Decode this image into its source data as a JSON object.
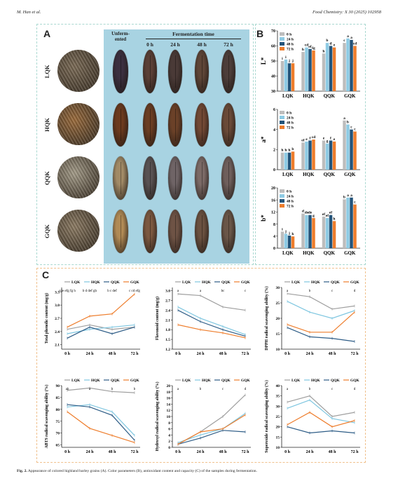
{
  "header": {
    "left": "M. Han et al.",
    "right": "Food Chemistry: X 30 (2025) 102958"
  },
  "panelA": {
    "label": "A",
    "varieties": [
      "LQK",
      "HQK",
      "QQK",
      "GQK"
    ],
    "column_unfermented": "Unferm-\nented",
    "fermentation_title": "Fermentation time",
    "time_cols": [
      "0 h",
      "24 h",
      "48 h",
      "72 h"
    ],
    "colors": {
      "LQK": {
        "whole": "#7a6a55",
        "grain": [
          "#3b2f3f",
          "#5a3f36",
          "#4a3a37",
          "#5e4537",
          "#4d3e3a"
        ]
      },
      "HQK": {
        "whole": "#9a6a3a",
        "grain": [
          "#6b3a1e",
          "#6a3d22",
          "#6b4128",
          "#714834",
          "#6a4a38"
        ]
      },
      "QQK": {
        "whole": "#a39b88",
        "grain": [
          "#a18a66",
          "#585152",
          "#6f6466",
          "#7b6a66",
          "#6f5f5c"
        ]
      },
      "GQK": {
        "whole": "#8b7a62",
        "grain": [
          "#b08a55",
          "#7b5840",
          "#6e5345",
          "#6a5140",
          "#6a5648"
        ]
      }
    }
  },
  "panelB": {
    "label": "B",
    "legend": [
      "0 h",
      "24 h",
      "48 h",
      "72 h"
    ],
    "series_colors": [
      "#bdbdbd",
      "#8ecbe4",
      "#23547a",
      "#ee7d2c"
    ],
    "categories": [
      "LQK",
      "HQK",
      "QQK",
      "GQK"
    ],
    "charts": [
      {
        "ylabel": "L*",
        "ylim": [
          30,
          70
        ],
        "ticks": [
          "30",
          "40",
          "50",
          "60",
          "70"
        ],
        "values": [
          [
            50,
            51,
            48.5,
            48.5
          ],
          [
            56,
            59,
            58,
            57
          ],
          [
            55,
            62,
            60,
            59
          ],
          [
            62,
            65,
            64,
            60
          ]
        ],
        "letters": [
          [
            "i",
            "i",
            "j",
            "j"
          ],
          [
            "h",
            "cd",
            "ef",
            "fg"
          ],
          [
            "h",
            "b",
            "d",
            "e"
          ],
          [
            "c",
            "a",
            "a",
            "cd"
          ]
        ]
      },
      {
        "ylabel": "a*",
        "ylim": [
          0,
          6
        ],
        "ticks": [
          "0",
          "2",
          "4",
          "6"
        ],
        "values": [
          [
            1.7,
            1.7,
            1.7,
            1.8
          ],
          [
            2.7,
            2.8,
            2.9,
            3.0
          ],
          [
            2.9,
            2.6,
            2.9,
            2.8
          ],
          [
            4.9,
            4.5,
            4.0,
            3.8
          ]
        ],
        "letters": [
          [
            "h",
            "h",
            "h",
            "b"
          ],
          [
            "ef",
            "e",
            "f",
            "cd"
          ],
          [
            "e",
            "g",
            "f",
            "e"
          ],
          [
            "a",
            "b",
            "c",
            "c"
          ]
        ]
      },
      {
        "ylabel": "b*",
        "ylim": [
          0,
          20
        ],
        "ticks": [
          "0",
          "4",
          "8",
          "12",
          "16",
          "20"
        ],
        "values": [
          [
            5.5,
            4.8,
            4.2,
            3.9
          ],
          [
            11.5,
            11.0,
            11.0,
            10.0
          ],
          [
            10.5,
            10.0,
            11.0,
            9.0
          ],
          [
            16.2,
            16.8,
            16.8,
            14.5
          ]
        ],
        "letters": [
          [
            "i",
            "j",
            "j",
            "k"
          ],
          [
            "d",
            "de",
            "de",
            "g"
          ],
          [
            "ef",
            "ef",
            "ef",
            "h"
          ],
          [
            "b",
            "a",
            "a",
            "c"
          ]
        ]
      }
    ]
  },
  "panelC": {
    "label": "C",
    "legend": [
      "LQK",
      "HQK",
      "QQK",
      "GQK"
    ],
    "series_colors": [
      "#9e9e9e",
      "#7ec6e0",
      "#2d5c86",
      "#ee7d2c"
    ],
    "x": [
      "0 h",
      "24 h",
      "48 h",
      "72 h"
    ],
    "charts": [
      {
        "ylabel": "Total phenolic content (mg/g)",
        "ylim": [
          2.0,
          3.4
        ],
        "ticks": [
          "2.1",
          "2.4",
          "2.7",
          "3.0",
          "3.3"
        ],
        "series": [
          [
            2.45,
            2.55,
            2.45,
            2.5
          ],
          [
            2.35,
            2.45,
            2.5,
            2.55
          ],
          [
            2.25,
            2.5,
            2.35,
            2.5
          ],
          [
            2.5,
            2.75,
            2.8,
            3.25
          ]
        ],
        "letters": [
          "cde efg fg h",
          "b d def gh",
          "b c def",
          "c cd efg"
        ]
      },
      {
        "ylabel": "Flavonoid content (mg/g)",
        "ylim": [
          1.2,
          3.1
        ],
        "ticks": [
          "1.2",
          "1.5",
          "1.8",
          "2.1",
          "2.4",
          "2.7",
          "3.0"
        ],
        "series": [
          [
            2.9,
            2.85,
            2.5,
            2.4
          ],
          [
            2.5,
            2.15,
            1.9,
            1.65
          ],
          [
            2.4,
            2.05,
            1.8,
            1.6
          ],
          [
            1.95,
            1.8,
            1.7,
            1.55
          ]
        ],
        "letters": [
          "a",
          "a",
          "bc",
          "c"
        ]
      },
      {
        "ylabel": "DPPH radical scavenging ability (%)",
        "ylim": [
          10,
          30
        ],
        "ticks": [
          "10",
          "15",
          "20",
          "25",
          "30"
        ],
        "series": [
          [
            28,
            27,
            23,
            24
          ],
          [
            25.5,
            22,
            20,
            22.5
          ],
          [
            17,
            14,
            13.5,
            12.5
          ],
          [
            18,
            15.5,
            15.5,
            22
          ]
        ],
        "letters": [
          "a",
          "b",
          "c",
          "d"
        ]
      },
      {
        "ylabel": "ABTS radical scavenging ability (%)",
        "ylim": [
          64,
          90
        ],
        "ticks": [
          "65",
          "70",
          "75",
          "80",
          "85",
          "90"
        ],
        "series": [
          [
            88,
            89,
            87.5,
            87
          ],
          [
            81,
            82,
            79,
            69
          ],
          [
            82,
            81,
            77.5,
            67
          ],
          [
            79,
            72,
            69,
            66
          ]
        ],
        "letters": [
          "ab",
          "a",
          "b",
          "b"
        ]
      },
      {
        "ylabel": "Hydroxyl radical scavenging ability (%)",
        "ylim": [
          0,
          20
        ],
        "ticks": [
          "0",
          "2",
          "4",
          "6",
          "8",
          "10",
          "12",
          "14",
          "16",
          "18",
          "20"
        ],
        "series": [
          [
            1,
            5,
            10,
            17
          ],
          [
            1.5,
            4,
            6,
            11
          ],
          [
            1,
            3,
            5.5,
            5
          ],
          [
            1,
            5,
            6,
            10.5
          ]
        ],
        "letters": [
          "a",
          "b",
          "c",
          "d"
        ]
      },
      {
        "ylabel": "Superoxide radical scavenging ability (%)",
        "ylim": [
          10,
          40
        ],
        "ticks": [
          "10",
          "15",
          "20",
          "25",
          "30",
          "35",
          "40"
        ],
        "series": [
          [
            32,
            35,
            25,
            27
          ],
          [
            29,
            33,
            24,
            22
          ],
          [
            20,
            17,
            18,
            17
          ],
          [
            21,
            27,
            20,
            23
          ]
        ],
        "letters": [
          "a",
          "b",
          "c",
          "d"
        ]
      }
    ]
  },
  "caption": {
    "bold": "Fig. 2.",
    "text": "Appearance of colored highland barley grains (A). Color parameters (B), antioxidant content and capacity (C) of the samples during fermentation."
  }
}
